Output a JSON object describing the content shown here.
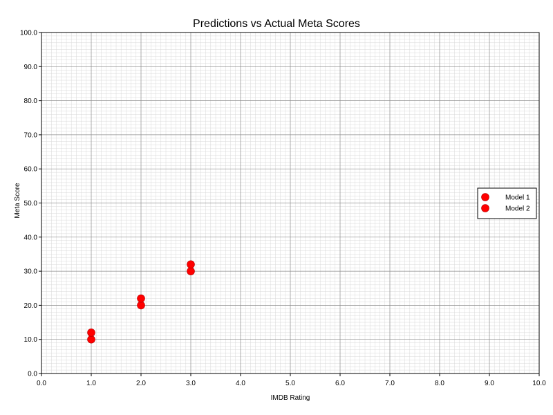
{
  "chart_data": {
    "type": "scatter",
    "title": "Predictions vs Actual Meta Scores",
    "xlabel": "IMDB Rating",
    "ylabel": "Meta Score",
    "xlim": [
      0,
      10
    ],
    "ylim": [
      0,
      100
    ],
    "x_ticks": [
      "0.0",
      "1.0",
      "2.0",
      "3.0",
      "4.0",
      "5.0",
      "6.0",
      "7.0",
      "8.0",
      "9.0",
      "10.0"
    ],
    "y_ticks": [
      "0.0",
      "10.0",
      "20.0",
      "30.0",
      "40.0",
      "50.0",
      "60.0",
      "70.0",
      "80.0",
      "90.0",
      "100.0"
    ],
    "grid": true,
    "legend_position": "right",
    "series": [
      {
        "name": "Model 1",
        "color": "#ff0000",
        "x": [
          1,
          2,
          3
        ],
        "y": [
          10,
          20,
          30
        ]
      },
      {
        "name": "Model 2",
        "color": "#ff0000",
        "x": [
          1,
          2,
          3
        ],
        "y": [
          12,
          22,
          32
        ]
      }
    ]
  }
}
